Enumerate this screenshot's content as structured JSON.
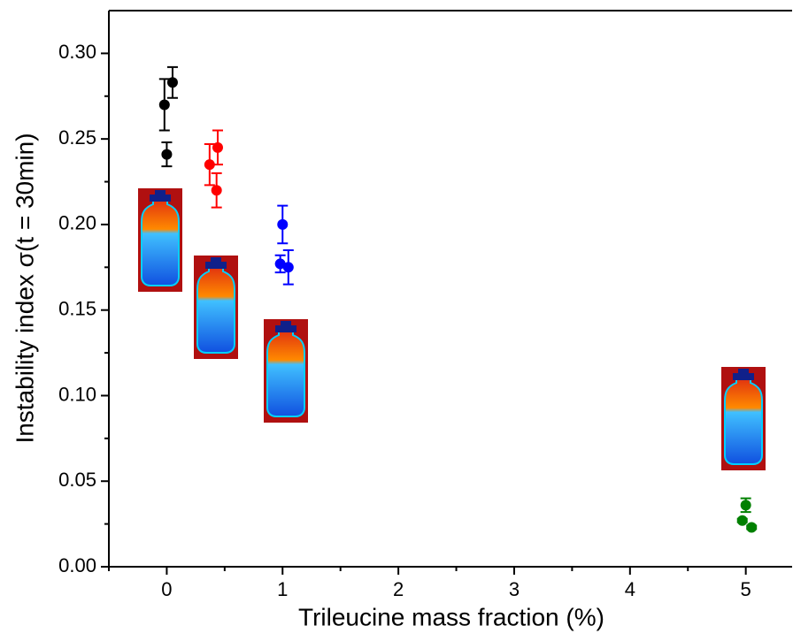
{
  "chart_data": {
    "type": "scatter",
    "x_label": "Trileucine mass fraction (%)",
    "y_label": "Instability index σ(t = 30min)",
    "xlim": [
      -0.5,
      5.4
    ],
    "ylim": [
      0,
      0.325
    ],
    "xticks": [
      0,
      1,
      2,
      3,
      4,
      5
    ],
    "xminorticks": [
      -0.5,
      0.5,
      1.5,
      2.5,
      3.5,
      4.5
    ],
    "yticks": [
      {
        "value": 0,
        "label": "0.00"
      },
      {
        "value": 0.05,
        "label": "0.05"
      },
      {
        "value": 0.1,
        "label": "0.10"
      },
      {
        "value": 0.15,
        "label": "0.15"
      },
      {
        "value": 0.2,
        "label": "0.20"
      },
      {
        "value": 0.25,
        "label": "0.25"
      },
      {
        "value": 0.3,
        "label": "0.30"
      }
    ],
    "yminorticks": [
      0.025,
      0.075,
      0.125,
      0.175,
      0.225,
      0.275
    ],
    "series": [
      {
        "color": "#000000",
        "x": [
          -0.02,
          0.05,
          0.0
        ],
        "values": [
          0.27,
          0.283,
          0.241
        ],
        "errors": [
          0.015,
          0.009,
          0.007
        ]
      },
      {
        "color": "#ff0000",
        "x": [
          0.37,
          0.44,
          0.43
        ],
        "values": [
          0.235,
          0.245,
          0.22
        ],
        "errors": [
          0.012,
          0.01,
          0.01
        ]
      },
      {
        "color": "#0000ff",
        "x": [
          0.98,
          1.0,
          1.05
        ],
        "values": [
          0.177,
          0.2,
          0.175
        ],
        "errors": [
          0.005,
          0.011,
          0.01
        ]
      },
      {
        "color": "#008000",
        "x": [
          4.97,
          5.0,
          5.05
        ],
        "values": [
          0.027,
          0.036,
          0.023
        ],
        "errors": [
          0.001,
          0.004,
          0.001
        ]
      }
    ]
  }
}
